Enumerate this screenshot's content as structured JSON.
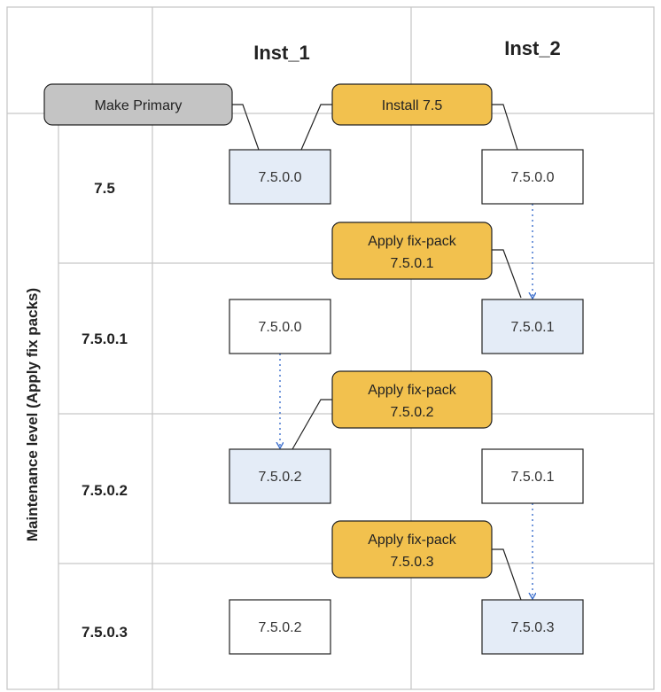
{
  "columns": {
    "inst1": "Inst_1",
    "inst2": "Inst_2"
  },
  "axis_label": "Maintenance level (Apply fix packs)",
  "rows": {
    "r1": "7.5",
    "r2": "7.5.0.1",
    "r3": "7.5.0.2",
    "r4": "7.5.0.3"
  },
  "boxes": {
    "i1r1": "7.5.0.0",
    "i2r1": "7.5.0.0",
    "i1r2": "7.5.0.0",
    "i2r2": "7.5.0.1",
    "i1r3": "7.5.0.2",
    "i2r3": "7.5.0.1",
    "i1r4": "7.5.0.2",
    "i2r4": "7.5.0.3"
  },
  "callouts": {
    "make_primary": "Make Primary",
    "install": "Install 7.5",
    "fp1_line1": "Apply fix-pack",
    "fp1_line2": "7.5.0.1",
    "fp2_line1": "Apply fix-pack",
    "fp2_line2": "7.5.0.2",
    "fp3_line1": "Apply fix-pack",
    "fp3_line2": "7.5.0.3"
  },
  "colors": {
    "grid": "#c8c8c8",
    "highlight_box": "#e4ecf7",
    "plain_box": "#ffffff",
    "callout_gold": "#f2c14e",
    "callout_gray": "#c4c4c4",
    "arrow": "#3b6ecc"
  }
}
